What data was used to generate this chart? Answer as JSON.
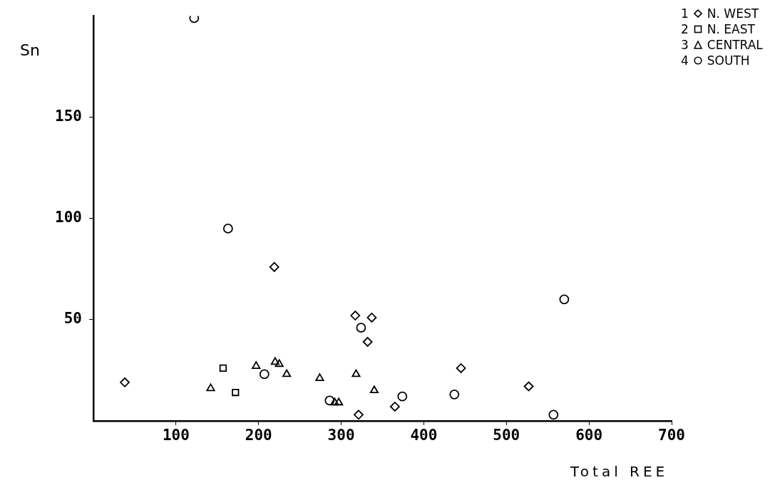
{
  "chart_data": {
    "type": "scatter",
    "xlabel": "Total REE",
    "ylabel": "Sn",
    "xlim": [
      0,
      700
    ],
    "xticks": [
      100,
      200,
      300,
      400,
      500,
      600,
      700
    ],
    "ylim": [
      0,
      200
    ],
    "yticks": [
      50,
      100,
      150
    ],
    "grid": false,
    "legend": "top right",
    "annotations": [
      "1",
      "2",
      "3",
      "4"
    ],
    "series": [
      {
        "name": "N. WEST",
        "color": "#000000",
        "marker": "diamond",
        "x": [
          38,
          219,
          317,
          337,
          332,
          445,
          527,
          365,
          321
        ],
        "values": [
          19,
          76,
          52,
          51,
          39,
          26,
          17,
          7,
          3
        ]
      },
      {
        "name": "N. EAST",
        "color": "#000000",
        "marker": "square",
        "x": [
          157,
          172
        ],
        "values": [
          26,
          14
        ]
      },
      {
        "name": "CENTRAL",
        "color": "#000000",
        "marker": "triangle",
        "x": [
          142,
          197,
          220,
          225,
          234,
          274,
          318,
          340,
          292,
          297
        ],
        "values": [
          16,
          27,
          29,
          28,
          23,
          21,
          23,
          15,
          9,
          9
        ]
      },
      {
        "name": "SOUTH",
        "color": "#000000",
        "marker": "circle",
        "x": [
          122,
          163,
          207,
          324,
          286,
          374,
          437,
          557,
          570
        ],
        "values": [
          199,
          95,
          23,
          46,
          10,
          12,
          13,
          3,
          60
        ]
      }
    ]
  }
}
